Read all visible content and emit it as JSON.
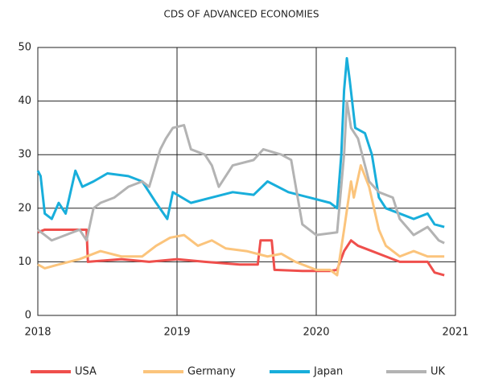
{
  "chart_data": {
    "type": "line",
    "title": "CDS OF ADVANCED ECONOMIES",
    "xlim": [
      2018,
      2021
    ],
    "xticks": [
      2018,
      2019,
      2020,
      2021
    ],
    "ylim": [
      0,
      50
    ],
    "yticks": [
      0,
      10,
      20,
      30,
      40,
      50
    ],
    "grid": true,
    "legend": "bottom",
    "series": [
      {
        "name": "USA",
        "color": "#ef4f4c",
        "x": [
          2018,
          2018.05,
          2018.35,
          2018.36,
          2018.6,
          2018.8,
          2019.0,
          2019.2,
          2019.45,
          2019.58,
          2019.6,
          2019.68,
          2019.7,
          2019.9,
          2020.1,
          2020.15,
          2020.2,
          2020.25,
          2020.3,
          2020.4,
          2020.5,
          2020.6,
          2020.8,
          2020.85,
          2020.92
        ],
        "values": [
          15.5,
          16,
          16,
          10,
          10.5,
          10,
          10.5,
          10,
          9.5,
          9.5,
          14,
          14,
          8.5,
          8.3,
          8.3,
          8.5,
          12,
          14,
          13,
          12,
          11,
          10,
          10,
          8,
          7.5
        ]
      },
      {
        "name": "Germany",
        "color": "#fbc47c",
        "x": [
          2018,
          2018.05,
          2018.15,
          2018.3,
          2018.45,
          2018.6,
          2018.75,
          2018.85,
          2018.95,
          2019.05,
          2019.15,
          2019.25,
          2019.35,
          2019.5,
          2019.65,
          2019.75,
          2019.85,
          2020.0,
          2020.1,
          2020.15,
          2020.2,
          2020.25,
          2020.27,
          2020.32,
          2020.38,
          2020.45,
          2020.5,
          2020.6,
          2020.7,
          2020.8,
          2020.92
        ],
        "values": [
          9.5,
          8.8,
          9.5,
          10.5,
          12,
          11,
          11,
          13,
          14.5,
          15,
          13,
          14,
          12.5,
          12,
          11,
          11.5,
          10,
          8.5,
          8.5,
          7.5,
          16,
          25,
          22,
          28,
          24,
          16,
          13,
          11,
          12,
          11,
          11
        ]
      },
      {
        "name": "Japan",
        "color": "#18aedb",
        "x": [
          2018,
          2018.02,
          2018.05,
          2018.1,
          2018.15,
          2018.2,
          2018.27,
          2018.32,
          2018.4,
          2018.5,
          2018.65,
          2018.75,
          2018.85,
          2018.93,
          2018.97,
          2019.1,
          2019.25,
          2019.4,
          2019.55,
          2019.65,
          2019.8,
          2019.95,
          2020.1,
          2020.15,
          2020.18,
          2020.2,
          2020.22,
          2020.24,
          2020.28,
          2020.35,
          2020.4,
          2020.45,
          2020.5,
          2020.6,
          2020.7,
          2020.8,
          2020.85,
          2020.92
        ],
        "values": [
          27,
          26,
          19,
          18,
          21,
          19,
          27,
          24,
          25,
          26.5,
          26,
          25,
          21,
          18,
          23,
          21,
          22,
          23,
          22.5,
          25,
          23,
          22,
          21,
          20,
          30,
          42,
          48,
          44,
          35,
          34,
          30,
          22,
          20,
          19,
          18,
          19,
          17,
          16.5
        ]
      },
      {
        "name": "UK",
        "color": "#b3b3b3",
        "x": [
          2018,
          2018.1,
          2018.2,
          2018.3,
          2018.35,
          2018.4,
          2018.45,
          2018.55,
          2018.65,
          2018.75,
          2018.8,
          2018.88,
          2018.92,
          2018.97,
          2019.05,
          2019.1,
          2019.2,
          2019.25,
          2019.3,
          2019.4,
          2019.55,
          2019.62,
          2019.75,
          2019.82,
          2019.9,
          2020.0,
          2020.15,
          2020.2,
          2020.22,
          2020.25,
          2020.3,
          2020.38,
          2020.45,
          2020.55,
          2020.6,
          2020.7,
          2020.8,
          2020.88,
          2020.92
        ],
        "values": [
          16,
          14,
          15,
          16,
          14,
          20,
          21,
          22,
          24,
          25,
          24,
          31,
          33,
          35,
          35.5,
          31,
          30,
          28,
          24,
          28,
          29,
          31,
          30,
          29,
          17,
          15,
          15.5,
          30,
          40,
          35,
          33,
          25,
          23,
          22,
          18,
          15,
          16.5,
          14,
          13.5
        ]
      }
    ]
  }
}
